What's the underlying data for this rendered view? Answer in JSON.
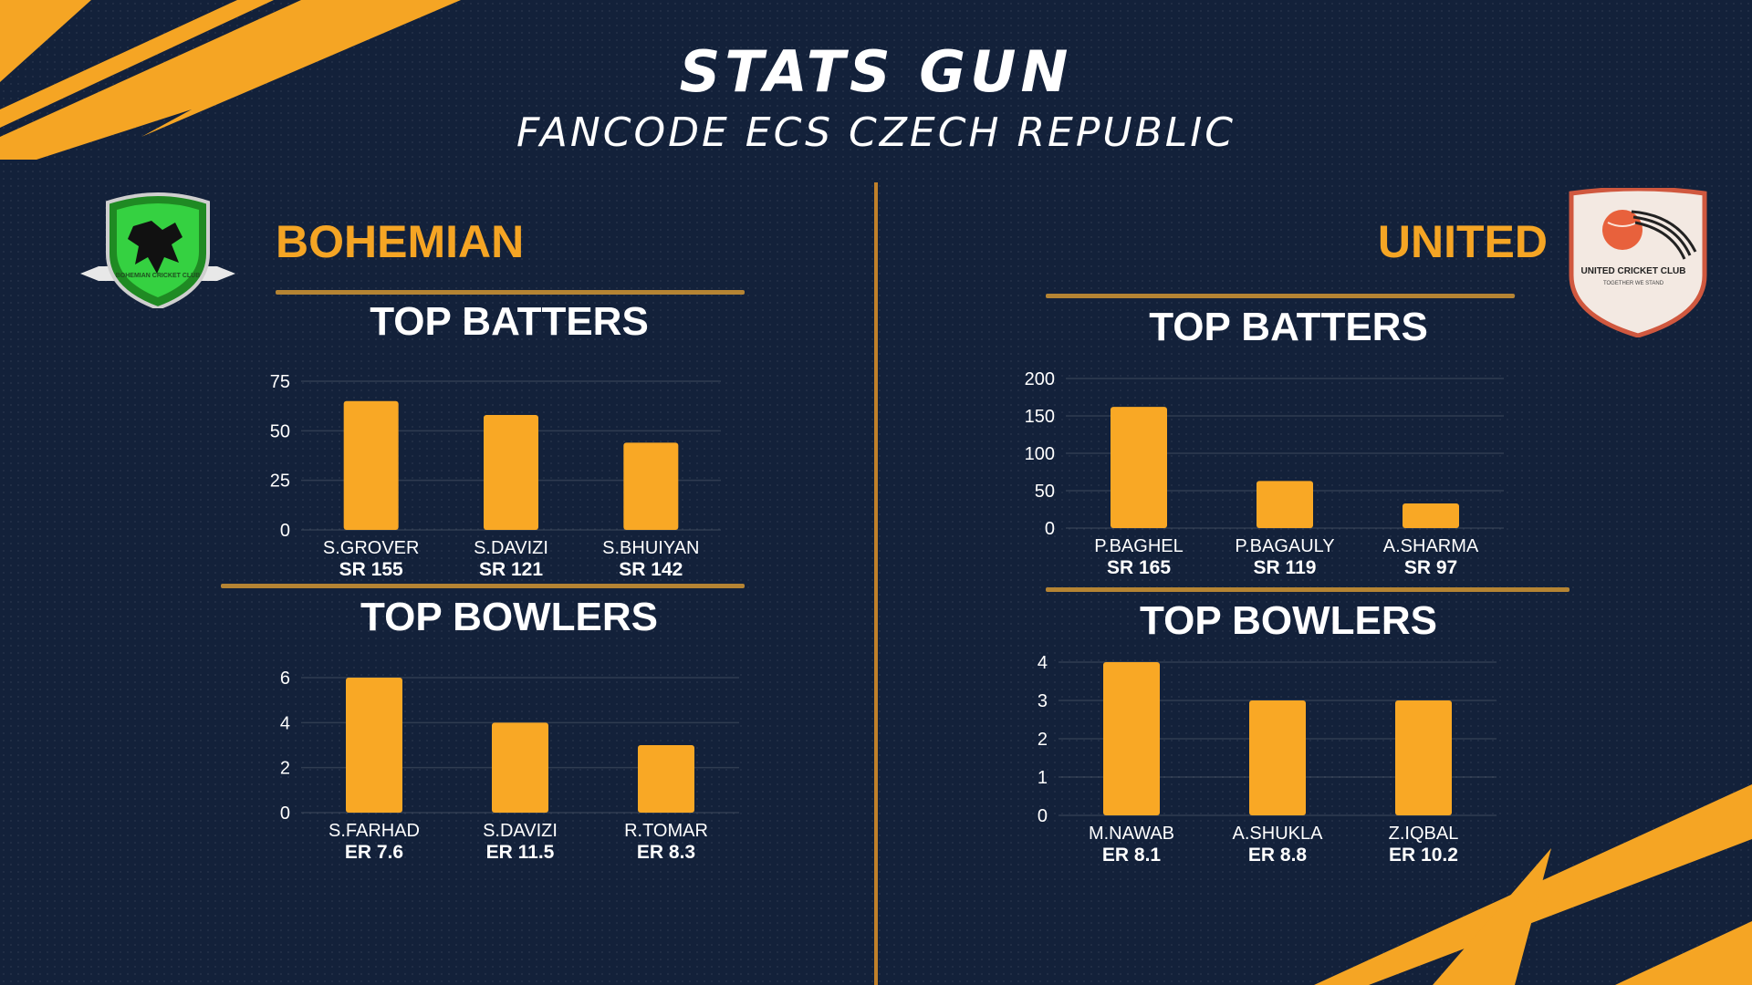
{
  "header": {
    "title": "STATS GUN",
    "subtitle": "FANCODE ECS CZECH REPUBLIC"
  },
  "colors": {
    "background": "#13213a",
    "accent": "#f5a524",
    "bar": "#f9a825",
    "rule": "#b58433"
  },
  "teams": {
    "left": {
      "name": "BOHEMIAN",
      "logo_text": "BOHEMIAN CRICKET CLUB",
      "logo_icon": "lion-shield-icon"
    },
    "right": {
      "name": "UNITED",
      "logo_text": "UNITED CRICKET CLUB",
      "logo_tagline": "TOGETHER WE STAND",
      "logo_icon": "cricket-ball-shield-icon"
    }
  },
  "sections": {
    "batters": "TOP BATTERS",
    "bowlers": "TOP BOWLERS"
  },
  "chart_data": [
    {
      "id": "bohemian-batters",
      "type": "bar",
      "title": "TOP BATTERS",
      "categories": [
        "S.GROVER",
        "S.DAVIZI",
        "S.BHUIYAN"
      ],
      "subtitles": [
        "SR 155",
        "SR 121",
        "SR 142"
      ],
      "values": [
        65,
        58,
        44
      ],
      "yticks": [
        0,
        25,
        50,
        75
      ],
      "ylim": [
        0,
        75
      ],
      "grid": true
    },
    {
      "id": "bohemian-bowlers",
      "type": "bar",
      "title": "TOP BOWLERS",
      "categories": [
        "S.FARHAD",
        "S.DAVIZI",
        "R.TOMAR"
      ],
      "subtitles": [
        "ER 7.6",
        "ER 11.5",
        "ER 8.3"
      ],
      "values": [
        6,
        4,
        3
      ],
      "yticks": [
        0,
        2,
        4,
        6
      ],
      "ylim": [
        0,
        6
      ],
      "grid": true
    },
    {
      "id": "united-batters",
      "type": "bar",
      "title": "TOP BATTERS",
      "categories": [
        "P.BAGHEL",
        "P.BAGAULY",
        "A.SHARMA"
      ],
      "subtitles": [
        "SR 165",
        "SR 119",
        "SR 97"
      ],
      "values": [
        162,
        63,
        33
      ],
      "yticks": [
        0,
        50,
        100,
        150,
        200
      ],
      "ylim": [
        0,
        200
      ],
      "grid": true
    },
    {
      "id": "united-bowlers",
      "type": "bar",
      "title": "TOP BOWLERS",
      "categories": [
        "M.NAWAB",
        "A.SHUKLA",
        "Z.IQBAL"
      ],
      "subtitles": [
        "ER 8.1",
        "ER 8.8",
        "ER 10.2"
      ],
      "values": [
        4,
        3,
        3
      ],
      "yticks": [
        0,
        1,
        2,
        3,
        4
      ],
      "ylim": [
        0,
        4
      ],
      "grid": true
    }
  ]
}
